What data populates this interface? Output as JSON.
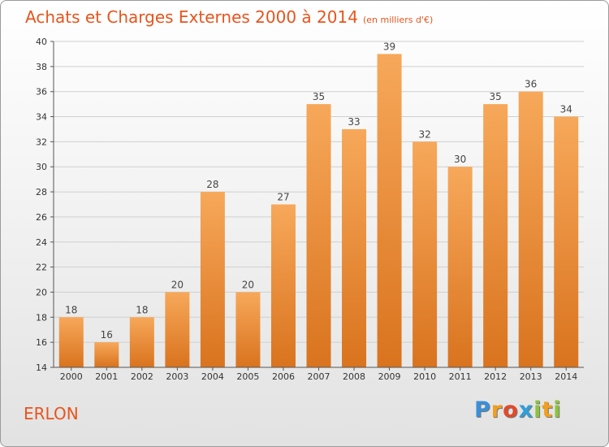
{
  "header": {
    "title": "Achats et Charges Externes 2000 à 2014",
    "subtitle": "(en milliers d'€)"
  },
  "footer": {
    "town": "ERLON",
    "logo_letters": [
      {
        "ch": "P",
        "color": "#3a8fd8"
      },
      {
        "ch": "r",
        "color": "#f0a020"
      },
      {
        "ch": "o",
        "color": "#e04a2a"
      },
      {
        "ch": "x",
        "color": "#2f9fd8"
      },
      {
        "ch": "i",
        "color": "#8cc43c"
      },
      {
        "ch": "t",
        "color": "#f0a020"
      },
      {
        "ch": "i",
        "color": "#8cc43c"
      }
    ]
  },
  "chart_data": {
    "type": "bar",
    "title": "Achats et Charges Externes 2000 à 2014",
    "subtitle": "(en milliers d'€)",
    "categories": [
      "2000",
      "2001",
      "2002",
      "2003",
      "2004",
      "2005",
      "2006",
      "2007",
      "2008",
      "2009",
      "2010",
      "2011",
      "2012",
      "2013",
      "2014"
    ],
    "values": [
      18,
      16,
      18,
      20,
      28,
      20,
      27,
      35,
      33,
      39,
      32,
      30,
      35,
      36,
      34
    ],
    "xlabel": "",
    "ylabel": "",
    "ylim": [
      14,
      40
    ],
    "yticks": [
      14,
      16,
      18,
      20,
      22,
      24,
      26,
      28,
      30,
      32,
      34,
      36,
      38,
      40
    ],
    "grid": true,
    "legend": "none",
    "bar_color_top": "#f7a85a",
    "bar_color_bottom": "#d9731e",
    "label_color": "#444444"
  }
}
